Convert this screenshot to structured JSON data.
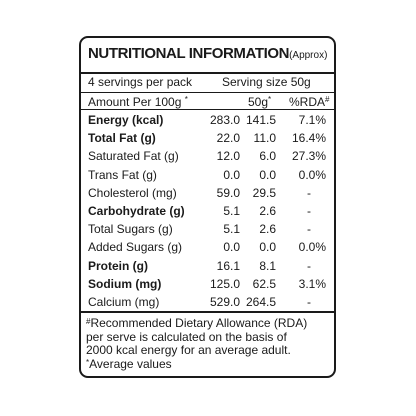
{
  "label": {
    "title": "NUTRITIONAL INFORMATION",
    "title_note": "(Approx)",
    "servings_per_pack": "4 servings per pack",
    "serving_size": "Serving size 50g",
    "header": {
      "nutrient": "Amount Per 100g",
      "nutrient_mark": "*",
      "per_serving": "50g",
      "per_serving_mark": "*",
      "rda": "%RDA",
      "rda_mark": "#"
    },
    "rows": [
      {
        "name": "Energy (kcal)",
        "bold": true,
        "per100": "283.0",
        "per50": "141.5",
        "rda": "7.1%"
      },
      {
        "name": "Total Fat (g)",
        "bold": true,
        "per100": "22.0",
        "per50": "11.0",
        "rda": "16.4%"
      },
      {
        "name": "Saturated Fat (g)",
        "bold": false,
        "per100": "12.0",
        "per50": "6.0",
        "rda": "27.3%"
      },
      {
        "name": "Trans Fat (g)",
        "bold": false,
        "per100": "0.0",
        "per50": "0.0",
        "rda": "0.0%"
      },
      {
        "name": "Cholesterol (mg)",
        "bold": false,
        "per100": "59.0",
        "per50": "29.5",
        "rda": "-"
      },
      {
        "name": "Carbohydrate (g)",
        "bold": true,
        "per100": "5.1",
        "per50": "2.6",
        "rda": "-"
      },
      {
        "name": "Total Sugars (g)",
        "bold": false,
        "per100": "5.1",
        "per50": "2.6",
        "rda": "-"
      },
      {
        "name": "Added Sugars (g)",
        "bold": false,
        "per100": "0.0",
        "per50": "0.0",
        "rda": "0.0%"
      },
      {
        "name": "Protein (g)",
        "bold": true,
        "per100": "16.1",
        "per50": "8.1",
        "rda": "-"
      },
      {
        "name": "Sodium (mg)",
        "bold": true,
        "per100": "125.0",
        "per50": "62.5",
        "rda": "3.1%"
      },
      {
        "name": "Calcium (mg)",
        "bold": false,
        "per100": "529.0",
        "per50": "264.5",
        "rda": "-"
      }
    ],
    "footnote": {
      "mark": "#",
      "lines": [
        "Recommended Dietary Allowance (RDA)",
        "per serve is calculated on the basis of",
        "2000 kcal energy for an average adult."
      ],
      "average_mark": "*",
      "average_text": "Average values"
    }
  }
}
